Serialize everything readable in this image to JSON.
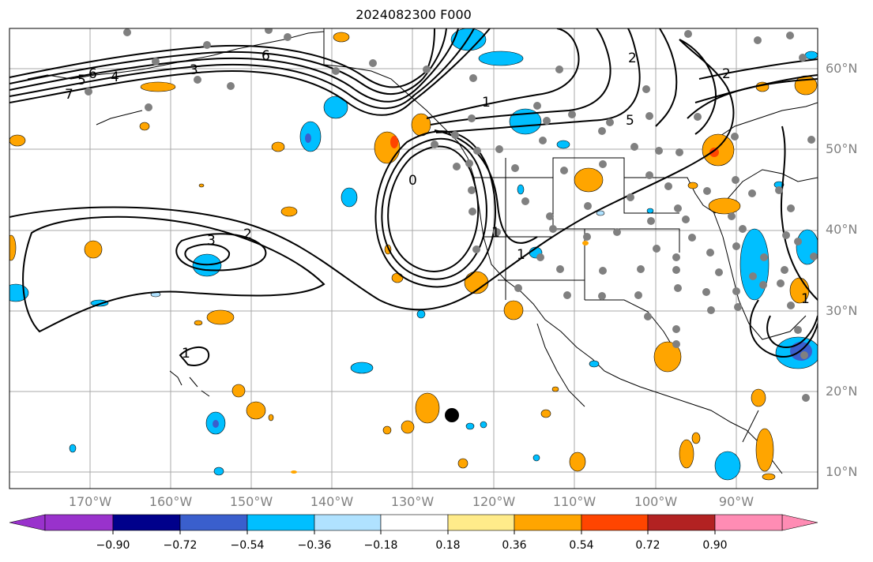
{
  "title": "2024082300 F000",
  "lat_labels": [
    "60°N",
    "50°N",
    "40°N",
    "30°N",
    "20°N",
    "10°N"
  ],
  "lon_labels": [
    "170°W",
    "160°W",
    "150°W",
    "140°W",
    "130°W",
    "120°W",
    "110°W",
    "100°W",
    "90°W"
  ],
  "contour_labels": [
    "7",
    "5",
    "6",
    "4",
    "3",
    "6",
    "1",
    "5",
    "2",
    "3",
    "2",
    "2",
    "1",
    "1",
    "0",
    "1",
    "1"
  ],
  "colorbar": {
    "tick_labels": [
      "−0.90",
      "−0.72",
      "−0.54",
      "−0.36",
      "−0.18",
      "0.18",
      "0.36",
      "0.54",
      "0.72",
      "0.90"
    ],
    "colors": [
      "#9932cc",
      "#00008b",
      "#3a5fcd",
      "#00bfff",
      "#b0e2ff",
      "#ffffff",
      "#ffeb8a",
      "#ffa500",
      "#ff4500",
      "#b22222",
      "#ff8cb4"
    ]
  },
  "colors": {
    "station_marker": "#808080",
    "highlight_marker": "#000000",
    "contour": "#000000",
    "grid": "#a9a9a9",
    "axis_label": "#808080"
  }
}
